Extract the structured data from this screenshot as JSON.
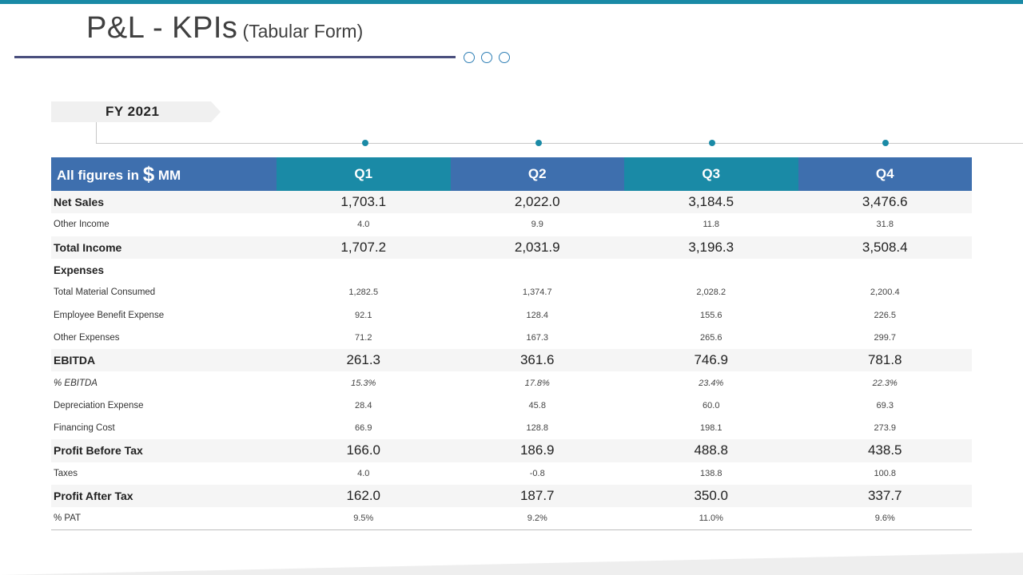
{
  "title": {
    "main": "P&L - KPIs",
    "sub": "(Tabular Form)"
  },
  "fy_label": "FY  2021",
  "table": {
    "header": {
      "label_prefix": "All figures in ",
      "currency_symbol": "$",
      "label_suffix": " MM"
    },
    "columns": [
      "Q1",
      "Q2",
      "Q3",
      "Q4"
    ],
    "rows": [
      {
        "label": "Net Sales",
        "values": [
          "1,703.1",
          "2,022.0",
          "3,184.5",
          "3,476.6"
        ]
      },
      {
        "label": "Other  Income",
        "values": [
          "4.0",
          "9.9",
          "11.8",
          "31.8"
        ]
      },
      {
        "label": "Total Income",
        "values": [
          "1,707.2",
          "2,031.9",
          "3,196.3",
          "3,508.4"
        ]
      },
      {
        "label": "Expenses",
        "values": [
          "",
          "",
          "",
          ""
        ]
      },
      {
        "label": "Total Material Consumed",
        "values": [
          "1,282.5",
          "1,374.7",
          "2,028.2",
          "2,200.4"
        ]
      },
      {
        "label": "Employee  Benefit  Expense",
        "values": [
          "92.1",
          "128.4",
          "155.6",
          "226.5"
        ]
      },
      {
        "label": "Other  Expenses",
        "values": [
          "71.2",
          "167.3",
          "265.6",
          "299.7"
        ]
      },
      {
        "label": "EBITDA",
        "values": [
          "261.3",
          "361.6",
          "746.9",
          "781.8"
        ]
      },
      {
        "label": "% EBITDA",
        "values": [
          "15.3%",
          "17.8%",
          "23.4%",
          "22.3%"
        ]
      },
      {
        "label": "Depreciation Expense",
        "values": [
          "28.4",
          "45.8",
          "60.0",
          "69.3"
        ]
      },
      {
        "label": "Financing Cost",
        "values": [
          "66.9",
          "128.8",
          "198.1",
          "273.9"
        ]
      },
      {
        "label": "Profit Before Tax",
        "values": [
          "166.0",
          "186.9",
          "488.8",
          "438.5"
        ]
      },
      {
        "label": "Taxes",
        "values": [
          "4.0",
          "-0.8",
          "138.8",
          "100.8"
        ]
      },
      {
        "label": "Profit After Tax",
        "values": [
          "162.0",
          "187.7",
          "350.0",
          "337.7"
        ]
      },
      {
        "label": "% PAT",
        "values": [
          "9.5%",
          "9.2%",
          "11.0%",
          "9.6%"
        ]
      }
    ]
  },
  "colors": {
    "teal": "#1a8aa6",
    "blue": "#3e6fae",
    "underline": "#4a4f7e"
  }
}
